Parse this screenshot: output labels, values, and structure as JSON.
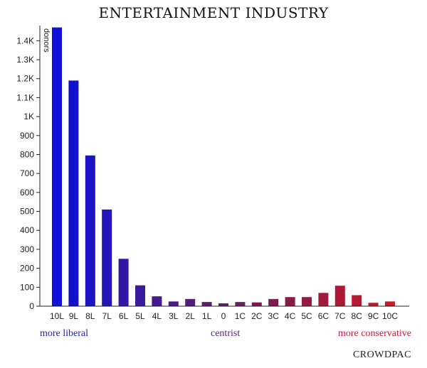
{
  "chart_data": {
    "type": "bar",
    "title": "ENTERTAINMENT INDUSTRY",
    "ylabel": "donors",
    "xlabel": "",
    "ylim": [
      0,
      1480
    ],
    "yticks": [
      0,
      100,
      200,
      300,
      400,
      500,
      600,
      700,
      800,
      900,
      1000,
      1100,
      1200,
      1300,
      1400
    ],
    "ytick_labels": [
      "0",
      "100",
      "200",
      "300",
      "400",
      "500",
      "600",
      "700",
      "800",
      "900",
      "1K",
      "1.1K",
      "1.2K",
      "1.3K",
      "1.4K"
    ],
    "categories": [
      "10L",
      "9L",
      "8L",
      "7L",
      "6L",
      "5L",
      "4L",
      "3L",
      "2L",
      "1L",
      "0",
      "1C",
      "2C",
      "3C",
      "4C",
      "5C",
      "6C",
      "7C",
      "8C",
      "9C",
      "10C"
    ],
    "values": [
      1470,
      1190,
      795,
      510,
      250,
      110,
      52,
      25,
      38,
      22,
      15,
      22,
      20,
      38,
      48,
      48,
      70,
      108,
      58,
      18,
      25
    ],
    "colors": [
      "#1010d8",
      "#1212cc",
      "#1a14c4",
      "#2216b8",
      "#3318a6",
      "#3c1a9c",
      "#441a92",
      "#4c1a88",
      "#541a7e",
      "#5c1a74",
      "#641a6a",
      "#6e1a60",
      "#781a58",
      "#821a50",
      "#8c1a48",
      "#961a40",
      "#a01a3a",
      "#aa1a34",
      "#b41a30",
      "#be1a2c",
      "#c81a28"
    ],
    "grid": false,
    "bottom_labels": {
      "left": "more liberal",
      "center": "centrist",
      "right": "more conservative"
    },
    "bottom_label_colors": {
      "left": "#2222bb",
      "center": "#552288",
      "right": "#cc1a3a"
    },
    "brand": "CROWDPAC"
  }
}
